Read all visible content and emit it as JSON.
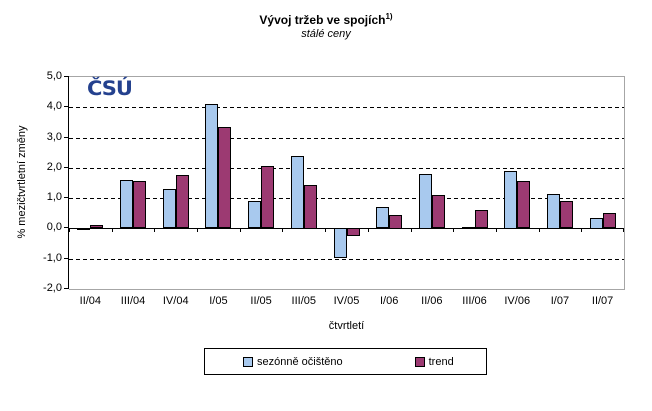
{
  "title": "Vývoj tržeb ve spojích",
  "title_superscript": "1)",
  "subtitle": "stálé ceny",
  "logo_text": "ČSÚ",
  "logo_color": "#24418E",
  "chart_data": {
    "type": "bar",
    "title": "Vývoj tržeb ve spojích 1)",
    "subtitle": "stálé ceny",
    "xlabel": "čtvrtletí",
    "ylabel": "% mezičtvrtletní změny",
    "ylim": [
      -2.0,
      5.0
    ],
    "ytick_step": 1.0,
    "ytick_labels": [
      "5,0",
      "4,0",
      "3,0",
      "2,0",
      "1,0",
      "0,0",
      "-1,0",
      "-2,0"
    ],
    "grid": "horizontal-dashed",
    "legend_position": "bottom",
    "categories": [
      "II/04",
      "III/04",
      "IV/04",
      "I/05",
      "II/05",
      "III/05",
      "IV/05",
      "I/06",
      "II/06",
      "III/06",
      "IV/06",
      "I/07",
      "II/07"
    ],
    "series": [
      {
        "name": "sezónně očištěno",
        "color": "#A8C9EE",
        "values": [
          -0.05,
          1.6,
          1.3,
          4.1,
          0.9,
          2.4,
          -1.0,
          0.7,
          1.8,
          0.05,
          1.9,
          1.15,
          0.35
        ]
      },
      {
        "name": "trend",
        "color": "#9C3A72",
        "values": [
          0.1,
          1.55,
          1.75,
          3.35,
          2.05,
          1.45,
          -0.25,
          0.45,
          1.1,
          0.6,
          1.55,
          0.9,
          0.5
        ]
      }
    ]
  }
}
